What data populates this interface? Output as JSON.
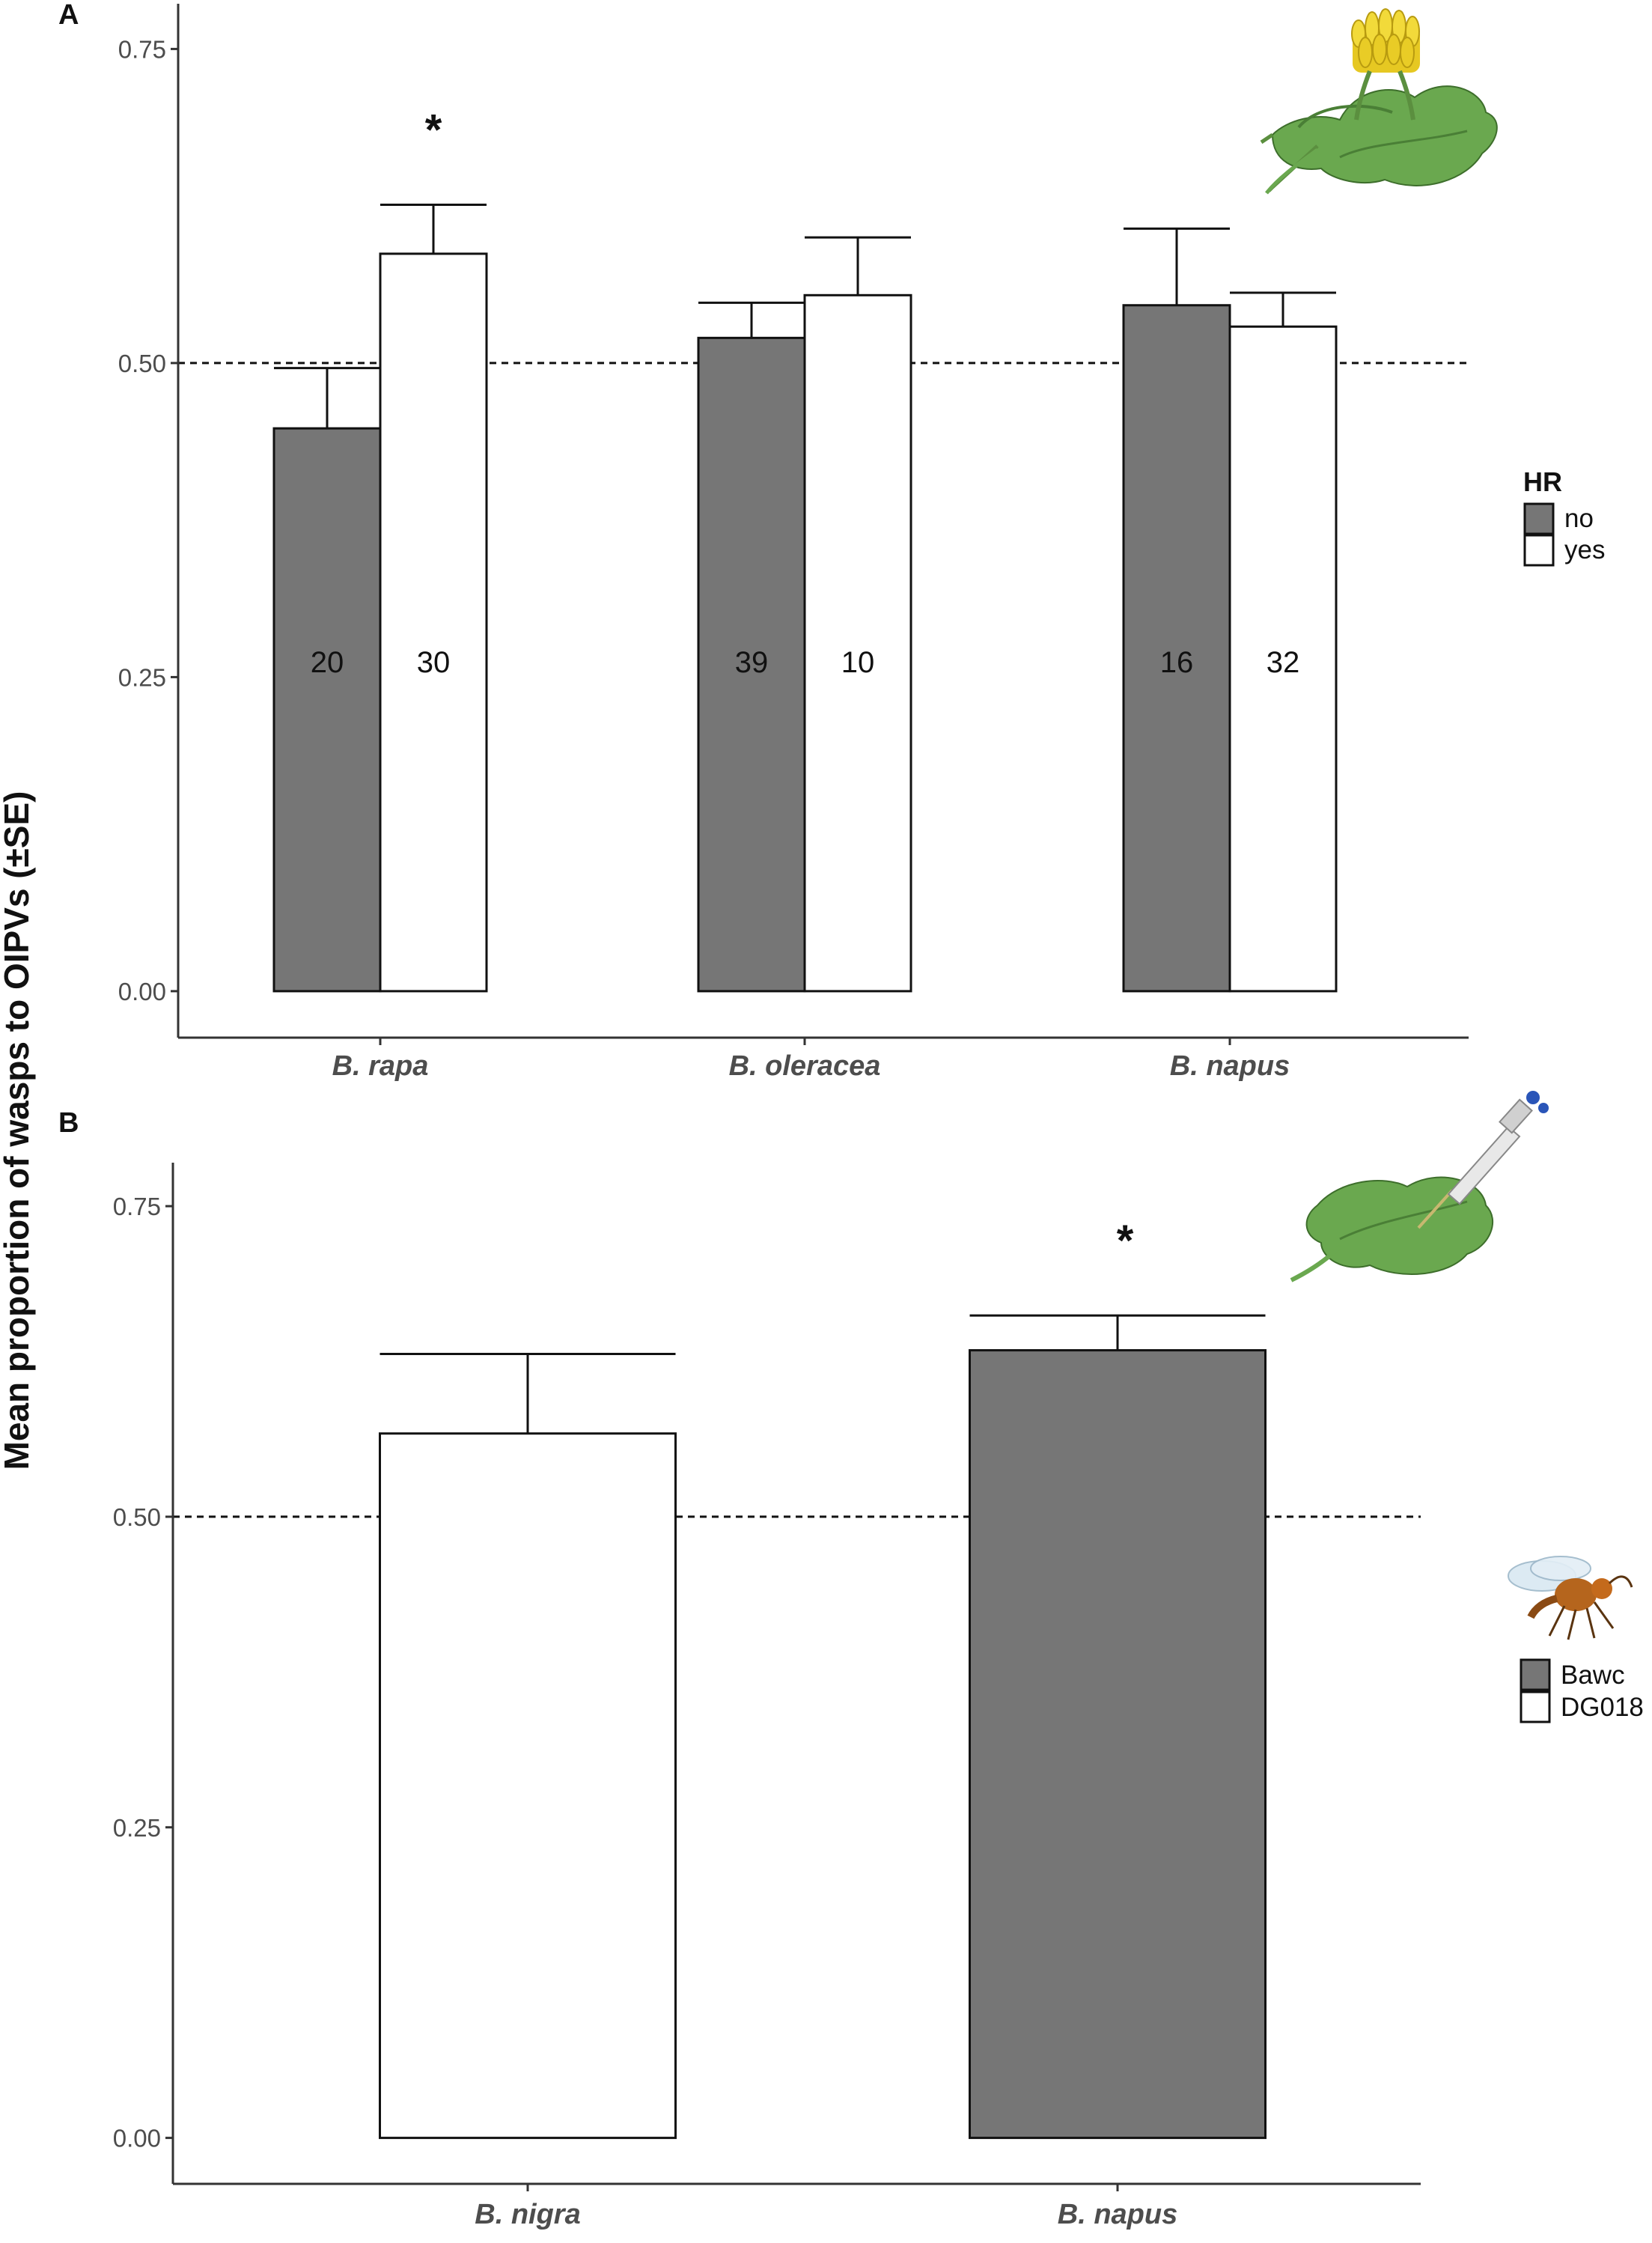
{
  "y_axis_label": "Mean proportion of wasps to OIPVs (±SE)",
  "colors": {
    "dark_bar": "#767676",
    "light_bar": "#ffffff"
  },
  "chart_data": [
    {
      "panel": "A",
      "type": "bar",
      "categories": [
        "B. rapa",
        "B. oleracea",
        "B. napus"
      ],
      "series": [
        {
          "name": "no",
          "values": [
            0.448,
            0.52,
            0.546
          ],
          "se": [
            0.048,
            0.028,
            0.061
          ],
          "n": [
            "20",
            "39",
            "16"
          ]
        },
        {
          "name": "yes",
          "values": [
            0.587,
            0.554,
            0.529
          ],
          "se": [
            0.039,
            0.046,
            0.027
          ],
          "n": [
            "30",
            "10",
            "32"
          ]
        }
      ],
      "significance": [
        "*",
        "",
        ""
      ],
      "reference_line": 0.5,
      "yticks": [
        "0.00",
        "0.25",
        "0.50",
        "0.75"
      ],
      "ylim": [
        -0.037,
        0.786
      ],
      "legend": {
        "title": "HR",
        "items": [
          "no",
          "yes"
        ],
        "position": "right"
      }
    },
    {
      "panel": "B",
      "type": "bar",
      "categories": [
        "B. nigra",
        "B. napus"
      ],
      "series": [
        {
          "name": "Bawc",
          "values": [
            null,
            0.634
          ],
          "se": [
            null,
            0.028
          ]
        },
        {
          "name": "DG018",
          "values": [
            0.567,
            null
          ],
          "se": [
            0.064,
            null
          ]
        }
      ],
      "significance": [
        "",
        "*"
      ],
      "reference_line": 0.5,
      "yticks": [
        "0.00",
        "0.25",
        "0.50",
        "0.75"
      ],
      "ylim": [
        -0.037,
        0.785
      ],
      "legend": {
        "title": "",
        "items": [
          "Bawc",
          "DG018"
        ],
        "position": "right"
      }
    }
  ]
}
